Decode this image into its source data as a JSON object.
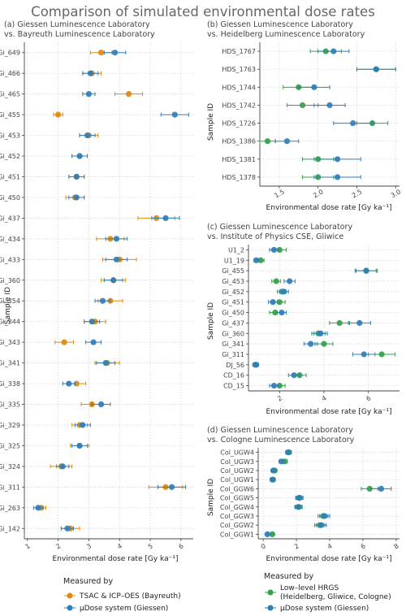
{
  "title": "Comparison of simulated environmental dose rates",
  "colors": {
    "orange": "#E08A0C",
    "blue": "#2E7EBA",
    "green": "#33A04A"
  },
  "axis_labels": {
    "x": "Environmental dose rate [Gy ka⁻¹]",
    "y": "Sample ID"
  },
  "legend_left": {
    "title": "Measured by",
    "items": [
      {
        "label": "TSAC & ICP–OES (Bayreuth)",
        "color": "#E08A0C"
      },
      {
        "label": "µDose system (Giessen)",
        "color": "#2E7EBA"
      }
    ]
  },
  "legend_right": {
    "title": "Measured by",
    "items": [
      {
        "label": "Low–level HRGS",
        "label2": "(Heidelberg, Gliwice, Cologne)",
        "color": "#33A04A"
      },
      {
        "label": "µDose system (Giessen)",
        "color": "#2E7EBA"
      }
    ]
  },
  "chart_data": [
    {
      "id": "a",
      "type": "scatter",
      "title": "(a) Giessen Luminescence Laboratory",
      "subtitle": "vs. Bayreuth Luminescence Laboratory",
      "xlim": [
        0.9,
        6.4
      ],
      "xticks": [
        1,
        2,
        3,
        4,
        5,
        6
      ],
      "grid": true,
      "categories": [
        "Gi_649",
        "Gi_466",
        "Gi_465",
        "Gi_455",
        "Gi_453",
        "Gi_452",
        "Gi_451",
        "Gi_450",
        "Gi_437",
        "Gi_434",
        "Gi_433",
        "Gi_360",
        "Gi_354",
        "Gi_344",
        "Gi_343",
        "Gi_341",
        "Gi_338",
        "Gi_335",
        "Gi_329",
        "Gi_325",
        "Gi_324",
        "Gi_311",
        "Gi_263",
        "Gi_142"
      ],
      "series": [
        {
          "name": "TSAC & ICP–OES (Bayreuth)",
          "color": "#E08A0C",
          "values": [
            3.4,
            3.1,
            4.3,
            2.0,
            3.0,
            2.7,
            2.6,
            2.55,
            5.2,
            3.7,
            4.0,
            3.8,
            3.7,
            3.2,
            2.2,
            3.6,
            2.6,
            3.1,
            2.7,
            2.7,
            2.1,
            5.5,
            1.45,
            2.4
          ],
          "err": [
            0.35,
            0.3,
            0.45,
            0.15,
            0.3,
            0.25,
            0.25,
            0.3,
            0.6,
            0.45,
            0.55,
            0.4,
            0.4,
            0.35,
            0.3,
            0.4,
            0.3,
            0.35,
            0.25,
            0.3,
            0.35,
            0.55,
            0.15,
            0.3
          ]
        },
        {
          "name": "µDose system (Giessen)",
          "color": "#2E7EBA",
          "values": [
            3.85,
            3.05,
            3.0,
            5.8,
            2.95,
            2.7,
            2.6,
            2.6,
            5.5,
            3.9,
            3.9,
            3.8,
            3.45,
            3.1,
            3.15,
            3.55,
            2.35,
            3.4,
            2.8,
            2.7,
            2.15,
            5.7,
            1.35,
            2.3
          ],
          "err": [
            0.35,
            0.25,
            0.2,
            0.45,
            0.25,
            0.25,
            0.25,
            0.25,
            0.45,
            0.35,
            0.35,
            0.3,
            0.25,
            0.25,
            0.25,
            0.3,
            0.2,
            0.3,
            0.25,
            0.25,
            0.2,
            0.45,
            0.15,
            0.2
          ]
        }
      ]
    },
    {
      "id": "b",
      "type": "scatter",
      "title": "(b) Giessen Luminescence Laboratory",
      "subtitle": "vs. Heidelberg Luminescence Laboratory",
      "xlim": [
        1.25,
        3.05
      ],
      "xticks": [
        1.5,
        2.0,
        2.5,
        3.0
      ],
      "grid": true,
      "categories": [
        "HDS_1767",
        "HDS_1763",
        "HDS_1744",
        "HDS_1742",
        "HDS_1726",
        "HDS_1386",
        "HDS_1381",
        "HDS_1378"
      ],
      "series": [
        {
          "name": "Low–level HRGS (Heidelberg, Gliwice, Cologne)",
          "color": "#33A04A",
          "values": [
            2.1,
            2.75,
            1.75,
            1.8,
            2.7,
            1.35,
            2.0,
            2.0
          ],
          "err": [
            0.2,
            0.25,
            0.2,
            0.2,
            0.2,
            0.1,
            0.2,
            0.2
          ]
        },
        {
          "name": "µDose system (Giessen)",
          "color": "#2E7EBA",
          "values": [
            2.2,
            2.75,
            1.95,
            2.15,
            2.45,
            1.6,
            2.25,
            2.25
          ],
          "err": [
            0.2,
            0.25,
            0.2,
            0.2,
            0.25,
            0.15,
            0.3,
            0.3
          ]
        }
      ]
    },
    {
      "id": "c",
      "type": "scatter",
      "title": "(c) Giessen Luminescence Laboratory",
      "subtitle": "vs. Institute of Physics CSE, Gliwice",
      "xlim": [
        0.6,
        7.4
      ],
      "xticks": [
        2,
        4,
        6
      ],
      "grid": true,
      "categories": [
        "U1_2",
        "U1_19",
        "Gi_455",
        "Gi_453",
        "Gi_452",
        "Gi_451",
        "Gi_450",
        "Gi_437",
        "Gi_360",
        "Gi_341",
        "Gi_311",
        "DJ_56",
        "CD_16",
        "CD_15"
      ],
      "series": [
        {
          "name": "Low–level HRGS (Heidelberg, Gliwice, Cologne)",
          "color": "#33A04A",
          "values": [
            2.0,
            1.15,
            5.9,
            1.85,
            2.1,
            2.0,
            1.8,
            4.7,
            3.75,
            4.0,
            6.6,
            0.9,
            2.9,
            2.0
          ],
          "err": [
            0.3,
            0.15,
            0.5,
            0.2,
            0.2,
            0.25,
            0.25,
            0.45,
            0.3,
            0.4,
            0.6,
            0.1,
            0.3,
            0.25
          ]
        },
        {
          "name": "µDose system (Giessen)",
          "color": "#2E7EBA",
          "values": [
            1.75,
            0.95,
            5.9,
            2.45,
            2.2,
            1.7,
            2.1,
            5.6,
            3.85,
            3.4,
            5.8,
            0.95,
            2.65,
            1.75
          ],
          "err": [
            0.2,
            0.1,
            0.45,
            0.25,
            0.2,
            0.2,
            0.2,
            0.5,
            0.3,
            0.3,
            0.5,
            0.1,
            0.25,
            0.2
          ]
        }
      ]
    },
    {
      "id": "d",
      "type": "scatter",
      "title": "(d) Giessen Luminescence Laboratory",
      "subtitle": "vs. Cologne Luminescence Laboratory",
      "xlim": [
        -0.3,
        8.2
      ],
      "xticks": [
        0,
        2,
        4,
        6,
        8
      ],
      "grid": true,
      "categories": [
        "Col_UGW4",
        "Col_UGW3",
        "Col_UGW2",
        "Col_UGW1",
        "Col_GGW6",
        "Col_GGW5",
        "Col_GGW4",
        "Col_GGW3",
        "Col_GGW2",
        "Col_GGW1"
      ],
      "series": [
        {
          "name": "Low–level HRGS (Heidelberg, Gliwice, Cologne)",
          "color": "#33A04A",
          "values": [
            1.55,
            1.3,
            0.7,
            0.6,
            6.4,
            2.2,
            2.15,
            3.6,
            3.4,
            0.55
          ],
          "err": [
            0.15,
            0.15,
            0.1,
            0.1,
            0.5,
            0.2,
            0.2,
            0.3,
            0.3,
            0.1
          ]
        },
        {
          "name": "µDose system (Giessen)",
          "color": "#2E7EBA",
          "values": [
            1.5,
            1.1,
            0.6,
            0.55,
            7.1,
            2.15,
            2.1,
            3.7,
            3.5,
            0.25
          ],
          "err": [
            0.15,
            0.15,
            0.1,
            0.1,
            0.6,
            0.2,
            0.2,
            0.3,
            0.3,
            0.05
          ]
        }
      ]
    }
  ]
}
